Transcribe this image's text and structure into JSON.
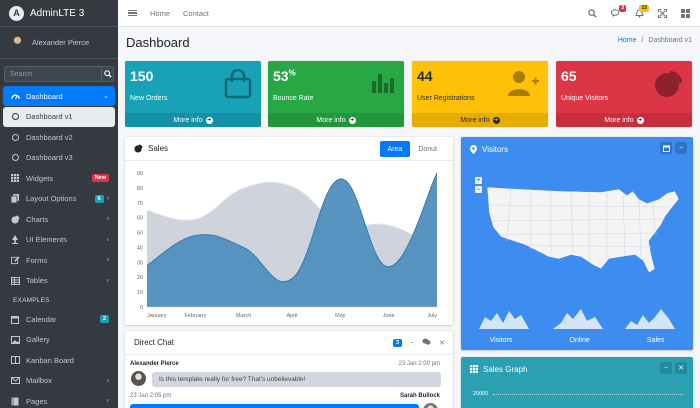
{
  "brand": {
    "name": "AdminLTE 3",
    "logo_letter": "A"
  },
  "user": {
    "name": "Alexander Pierce"
  },
  "search": {
    "placeholder": "Search"
  },
  "nav": {
    "dashboard": "Dashboard",
    "dashboard_v1": "Dashboard v1",
    "dashboard_v2": "Dashboard v2",
    "dashboard_v3": "Dashboard v3",
    "widgets": "Widgets",
    "widgets_badge": "New",
    "layout_options": "Layout Options",
    "layout_badge": "6",
    "charts": "Charts",
    "ui_elements": "UI Elements",
    "forms": "Forms",
    "tables": "Tables",
    "examples_header": "EXAMPLES",
    "calendar": "Calendar",
    "calendar_badge": "2",
    "gallery": "Gallery",
    "kanban": "Kanban Board",
    "mailbox": "Mailbox",
    "pages": "Pages"
  },
  "topnav": {
    "home": "Home",
    "contact": "Contact",
    "messages_count": "3",
    "notifications_count": "15"
  },
  "page": {
    "title": "Dashboard",
    "breadcrumb_home": "Home",
    "breadcrumb_sep": "/",
    "breadcrumb_current": "Dashboard v1"
  },
  "stats": [
    {
      "value": "150",
      "sup": "",
      "label": "New Orders",
      "footer": "More info",
      "color": "#17a2b8"
    },
    {
      "value": "53",
      "sup": "%",
      "label": "Bounce Rate",
      "footer": "More info",
      "color": "#28a745"
    },
    {
      "value": "44",
      "sup": "",
      "label": "User Registrations",
      "footer": "More info",
      "color": "#ffc107"
    },
    {
      "value": "65",
      "sup": "",
      "label": "Unique Visitors",
      "footer": "More info",
      "color": "#dc3545"
    }
  ],
  "sales": {
    "title": "Sales",
    "tab_area": "Area",
    "tab_donut": "Donut"
  },
  "chart_data": {
    "type": "area",
    "categories": [
      "January",
      "February",
      "March",
      "April",
      "May",
      "June",
      "July"
    ],
    "series": [
      {
        "values": [
          65,
          59,
          80,
          81,
          56,
          55,
          40
        ],
        "color": "#c9ced8"
      },
      {
        "values": [
          28,
          48,
          40,
          19,
          86,
          27,
          90
        ],
        "color": "#4f8fbf"
      }
    ],
    "ylim": [
      0,
      90
    ],
    "yticks": [
      "0",
      "10",
      "20",
      "30",
      "40",
      "50",
      "60",
      "70",
      "80",
      "90"
    ],
    "grid": false
  },
  "visitors": {
    "title": "Visitors",
    "zoom_in": "+",
    "zoom_out": "−",
    "spark_labels": [
      "Visitors",
      "Online",
      "Sales"
    ]
  },
  "chat": {
    "title": "Direct Chat",
    "count": "3",
    "messages": [
      {
        "name": "Alexander Pierce",
        "time": "23 Jan 2:00 pm",
        "text": "Is this template really for free? That's unbelievable!"
      },
      {
        "name": "Sarah Bullock",
        "time": "23 Jan 2:05 pm",
        "text": ""
      }
    ]
  },
  "sales_graph": {
    "title": "Sales Graph",
    "first_tick": "20000"
  }
}
